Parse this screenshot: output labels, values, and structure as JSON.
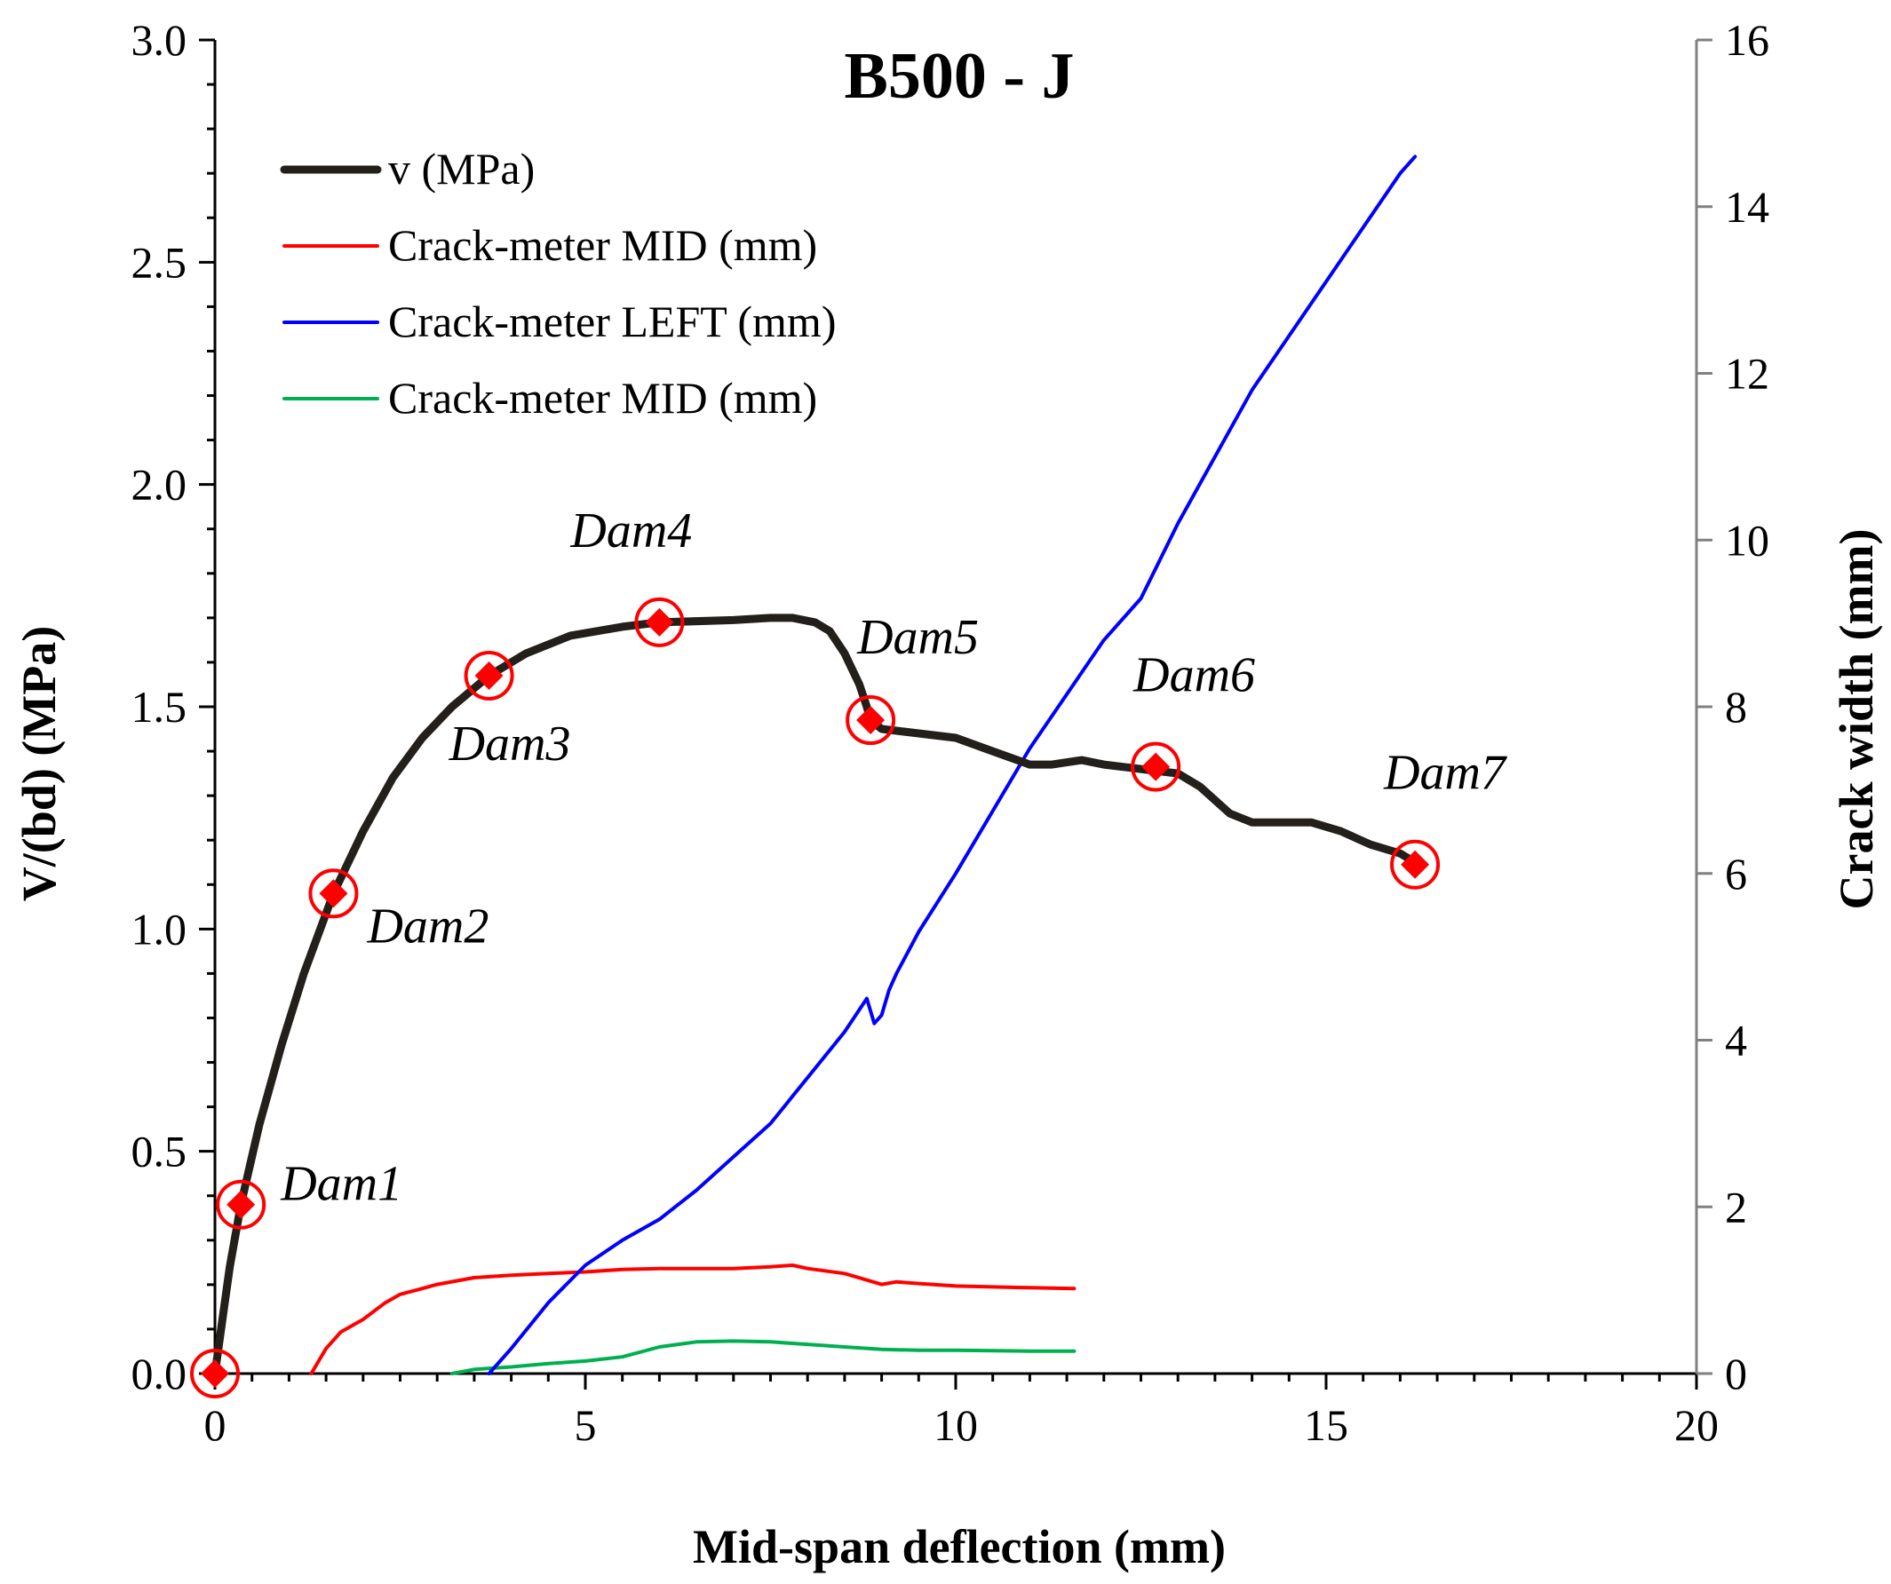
{
  "chart_data": {
    "type": "line",
    "title": "B500 - J",
    "xlabel": "Mid-span deflection (mm)",
    "ylabel": "V/(bd) (MPa)",
    "y2label": "Crack width (mm)",
    "xlim": [
      0,
      20
    ],
    "ylim": [
      0,
      3.0
    ],
    "y2lim": [
      0,
      16
    ],
    "x_ticks": [
      0,
      5,
      10,
      15,
      20
    ],
    "x_tick_labels": [
      "0",
      "5",
      "10",
      "15",
      "20"
    ],
    "y_ticks": [
      0,
      0.5,
      1.0,
      1.5,
      2.0,
      2.5,
      3.0
    ],
    "y_tick_labels": [
      "0.0",
      "0.5",
      "1.0",
      "1.5",
      "2.0",
      "2.5",
      "3.0"
    ],
    "y2_ticks": [
      0,
      2,
      4,
      6,
      8,
      10,
      12,
      14,
      16
    ],
    "y2_tick_labels": [
      "0",
      "2",
      "4",
      "6",
      "8",
      "10",
      "12",
      "14",
      "16"
    ],
    "grid": false,
    "legend_position": "top-left",
    "series": [
      {
        "name": "v (MPa)",
        "axis": "left",
        "color": "#231f1a",
        "x": [
          0,
          0.1,
          0.2,
          0.35,
          0.6,
          0.9,
          1.2,
          1.6,
          2.0,
          2.4,
          2.8,
          3.2,
          3.7,
          4.2,
          4.8,
          5.5,
          6.0,
          7.0,
          7.5,
          7.8,
          8.1,
          8.3,
          8.5,
          8.7,
          8.8,
          8.85,
          9.0,
          9.5,
          10.0,
          10.5,
          11.0,
          11.3,
          11.7,
          12.0,
          12.5,
          13.0,
          13.3,
          13.7,
          14.0,
          14.5,
          14.8,
          15.2,
          15.6,
          16.0,
          16.2
        ],
        "y": [
          0,
          0.12,
          0.24,
          0.38,
          0.56,
          0.74,
          0.9,
          1.08,
          1.22,
          1.34,
          1.43,
          1.5,
          1.57,
          1.62,
          1.66,
          1.68,
          1.69,
          1.695,
          1.7,
          1.7,
          1.69,
          1.67,
          1.62,
          1.55,
          1.5,
          1.47,
          1.45,
          1.44,
          1.43,
          1.4,
          1.37,
          1.37,
          1.38,
          1.37,
          1.36,
          1.35,
          1.32,
          1.26,
          1.24,
          1.24,
          1.24,
          1.22,
          1.19,
          1.17,
          1.15
        ]
      },
      {
        "name": "Crack-meter MID (mm)",
        "axis": "right",
        "color": "#ff0000",
        "x": [
          1.3,
          1.5,
          1.7,
          2.0,
          2.3,
          2.5,
          2.8,
          3.0,
          3.5,
          4.0,
          4.5,
          5.0,
          5.5,
          6.0,
          6.5,
          7.0,
          7.5,
          7.8,
          8.0,
          8.5,
          9.0,
          9.2,
          9.5,
          10.0,
          10.5,
          11.0,
          11.6
        ],
        "y": [
          0.0,
          0.3,
          0.5,
          0.65,
          0.85,
          0.95,
          1.02,
          1.07,
          1.15,
          1.18,
          1.2,
          1.22,
          1.25,
          1.26,
          1.26,
          1.26,
          1.28,
          1.3,
          1.26,
          1.2,
          1.07,
          1.1,
          1.08,
          1.05,
          1.04,
          1.03,
          1.02
        ]
      },
      {
        "name": "Crack-meter LEFT (mm)",
        "axis": "right",
        "color": "#0000ff",
        "x": [
          3.7,
          4.0,
          4.5,
          5.0,
          5.5,
          6.0,
          6.5,
          7.0,
          7.5,
          8.0,
          8.5,
          8.8,
          8.9,
          9.0,
          9.1,
          9.2,
          9.5,
          10.0,
          11.0,
          12.0,
          12.5,
          13.0,
          13.5,
          14.0,
          15.0,
          16.0,
          16.2
        ],
        "y": [
          0.0,
          0.3,
          0.85,
          1.3,
          1.6,
          1.85,
          2.2,
          2.6,
          3.0,
          3.55,
          4.1,
          4.5,
          4.2,
          4.3,
          4.6,
          4.8,
          5.3,
          6.0,
          7.5,
          8.8,
          9.3,
          10.2,
          11.0,
          11.8,
          13.1,
          14.4,
          14.6
        ]
      },
      {
        "name": "Crack-meter MID (mm)",
        "axis": "right",
        "color": "#00b050",
        "x": [
          3.2,
          3.5,
          4.0,
          4.5,
          5.0,
          5.5,
          6.0,
          6.5,
          7.0,
          7.5,
          8.0,
          8.5,
          9.0,
          9.5,
          10.0,
          11.0,
          11.6
        ],
        "y": [
          0.0,
          0.05,
          0.08,
          0.12,
          0.15,
          0.2,
          0.32,
          0.38,
          0.39,
          0.38,
          0.35,
          0.32,
          0.29,
          0.28,
          0.28,
          0.27,
          0.27
        ]
      }
    ],
    "damage_points": [
      {
        "label": "Dam1",
        "x": 0.35,
        "y": 0.38
      },
      {
        "label": "Dam2",
        "x": 1.6,
        "y": 1.08
      },
      {
        "label": "Dam3",
        "x": 3.7,
        "y": 1.57
      },
      {
        "label": "Dam4",
        "x": 6.0,
        "y": 1.69
      },
      {
        "label": "Dam5",
        "x": 8.85,
        "y": 1.47
      },
      {
        "label": "Dam6",
        "x": 12.7,
        "y": 1.365
      },
      {
        "label": "Dam7",
        "x": 16.2,
        "y": 1.145
      },
      {
        "label": "",
        "x": 0,
        "y": 0
      }
    ],
    "marker_color": "#ff0000"
  }
}
